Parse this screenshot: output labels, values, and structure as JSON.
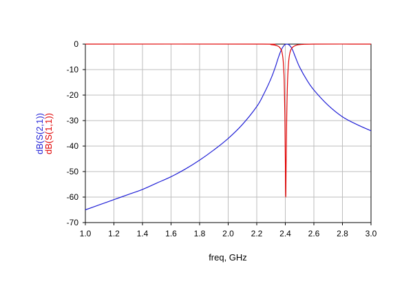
{
  "chart_data": {
    "type": "line",
    "xlabel": "freq, GHz",
    "xlim": [
      1.0,
      3.0
    ],
    "ylim": [
      -70,
      0
    ],
    "xticks": [
      "1.0",
      "1.2",
      "1.4",
      "1.6",
      "1.8",
      "2.0",
      "2.2",
      "2.4",
      "2.6",
      "2.8",
      "3.0"
    ],
    "yticks": [
      "0",
      "-10",
      "-20",
      "-30",
      "-40",
      "-50",
      "-60",
      "-70"
    ],
    "grid": true,
    "legend_placement": "left, vertical",
    "series": [
      {
        "name": "dB(S(2,1))",
        "color": "#1f1fd6",
        "points": [
          [
            1.0,
            -65.0
          ],
          [
            1.1,
            -63.0
          ],
          [
            1.2,
            -61.0
          ],
          [
            1.3,
            -59.0
          ],
          [
            1.4,
            -57.0
          ],
          [
            1.5,
            -54.5
          ],
          [
            1.6,
            -52.0
          ],
          [
            1.7,
            -49.0
          ],
          [
            1.8,
            -45.5
          ],
          [
            1.9,
            -41.5
          ],
          [
            2.0,
            -37.0
          ],
          [
            2.1,
            -31.5
          ],
          [
            2.2,
            -24.5
          ],
          [
            2.25,
            -19.5
          ],
          [
            2.3,
            -13.5
          ],
          [
            2.33,
            -9.0
          ],
          [
            2.35,
            -5.5
          ],
          [
            2.37,
            -2.5
          ],
          [
            2.39,
            -0.6
          ],
          [
            2.41,
            0.0
          ],
          [
            2.43,
            -0.5
          ],
          [
            2.45,
            -2.2
          ],
          [
            2.47,
            -5.0
          ],
          [
            2.5,
            -9.0
          ],
          [
            2.55,
            -14.0
          ],
          [
            2.6,
            -18.0
          ],
          [
            2.7,
            -24.0
          ],
          [
            2.8,
            -28.5
          ],
          [
            2.9,
            -31.5
          ],
          [
            3.0,
            -34.0
          ]
        ]
      },
      {
        "name": "dB(S(1,1))",
        "color": "#e00000",
        "points": [
          [
            1.0,
            0.0
          ],
          [
            2.2,
            0.0
          ],
          [
            2.3,
            -0.2
          ],
          [
            2.34,
            -0.6
          ],
          [
            2.36,
            -1.3
          ],
          [
            2.375,
            -2.8
          ],
          [
            2.385,
            -6.5
          ],
          [
            2.392,
            -14.0
          ],
          [
            2.397,
            -28.0
          ],
          [
            2.4,
            -45.0
          ],
          [
            2.403,
            -60.0
          ],
          [
            2.406,
            -45.0
          ],
          [
            2.41,
            -28.0
          ],
          [
            2.416,
            -14.0
          ],
          [
            2.424,
            -6.5
          ],
          [
            2.435,
            -2.8
          ],
          [
            2.45,
            -1.3
          ],
          [
            2.47,
            -0.6
          ],
          [
            2.5,
            -0.2
          ],
          [
            2.6,
            0.0
          ],
          [
            3.0,
            0.0
          ]
        ]
      }
    ]
  }
}
